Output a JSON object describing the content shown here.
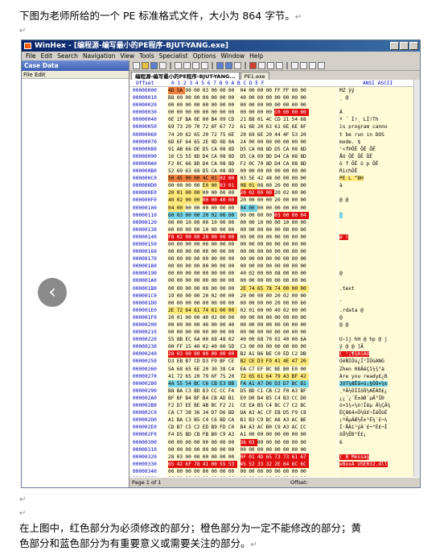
{
  "doc": {
    "intro": "下图为老师所给的一个 PE 标准格式文件，大小为 864 字节。",
    "para_mark": "↵",
    "explain_line1": "在上图中，红色部分为必须修改的部分；橙色部分为一定不能修改的部分；黄",
    "explain_line2": "色部分和蓝色部分为有重要意义或需要关注的部分。"
  },
  "window": {
    "title": "WinHex - [编程源-编写最小的PE程序-BJUT-YANG.exe]",
    "menu": [
      "File",
      "Edit",
      "Search",
      "Navigation",
      "View",
      "Tools",
      "Specialist",
      "Options",
      "Window",
      "Help"
    ],
    "left_header": "Case Data",
    "left_sub": "File  Edit",
    "tabs": [
      "编程源-编写最小的PE程序-BJUT-YANG...",
      "PE1.exe"
    ],
    "nav_arrow": "‹"
  },
  "hex": {
    "header_offset": "Offset",
    "header_cols": "0  1  2  3  4  5  6  7   8  9  A  B  C  D  E  F",
    "header_ascii": "ANSI ASCII",
    "rows": [
      {
        "off": "00000000",
        "b": "4D 5A 90 00 03 00 00 00 04 00 00 00 FF FF 00 00",
        "a": "MZ          ÿÿ"
      },
      {
        "off": "00000010",
        "b": "B8 00 00 00 00 00 00 00 40 00 00 00 00 00 00 00",
        "a": "¸       @"
      },
      {
        "off": "00000020",
        "b": "00 00 00 00 00 00 00 00 00 00 00 00 00 00 00 00",
        "a": ""
      },
      {
        "off": "00000030",
        "b": "00 00 00 00 00 00 00 00 00 00 00 00 C0 00 00 00",
        "a": "            À"
      },
      {
        "off": "00000040",
        "b": "0E 1F BA 0E 00 B4 09 CD 21 B8 01 4C CD 21 54 68",
        "a": "  º  ´ Í!¸ LÍ!Th"
      },
      {
        "off": "00000050",
        "b": "69 73 20 70 72 6F 67 72 61 6D 20 63 61 6E 6E 6F",
        "a": "is program canno"
      },
      {
        "off": "00000060",
        "b": "74 20 62 65 20 72 75 6E 20 69 6E 20 44 4F 53 20",
        "a": "t be run in DOS"
      },
      {
        "off": "00000070",
        "b": "6D 6F 64 65 2E 0D 0D 0A 24 00 00 00 00 00 00 00",
        "a": "mode.   $"
      },
      {
        "off": "00000080",
        "b": "91 AB 66 DE D5 CA 08 8D D5 CA 08 8D D5 CA 08 8D",
        "a": "'«fÞÕÊ ÕÊ ÕÊ"
      },
      {
        "off": "00000090",
        "b": "16 C5 55 8D D4 CA 08 8D D5 CA 09 8D D4 CA 08 8D",
        "a": " ÅU ÔÊ ÕÊ ÔÊ"
      },
      {
        "off": "000000A0",
        "b": "F2 0C 66 8D D4 CA 08 8D F2 0C 70 8D D4 CA 08 8D",
        "a": "ò f ÔÊ ò p ÔÊ"
      },
      {
        "off": "000000B0",
        "b": "52 69 63 68 D5 CA 08 8D 00 00 00 00 00 00 00 00",
        "a": "RichÕÊ"
      },
      {
        "off": "000000C0",
        "b": "50 45 00 00 4C 01 02 00 03 5E 42 48 00 00 00 00",
        "a": "PE  L   ^BH"
      },
      {
        "off": "000000D0",
        "b": "00 00 00 00 E0 00 03 01 0B 01 08 00 20 00 00 00",
        "a": "    à"
      },
      {
        "off": "000000E0",
        "b": "20 01 00 00 00 00 00 00 20 02 00 00 20 02 00 00",
        "a": ""
      },
      {
        "off": "000000F0",
        "b": "40 02 00 00 00 00 40 00 20 00 00 00 20 00 00 00",
        "a": "@     @"
      },
      {
        "off": "00000100",
        "b": "04 00 00 00 00 00 00 00 04 00 00 00 00 00 00 00",
        "a": ""
      },
      {
        "off": "00000110",
        "b": "60 03 00 00 20 02 00 00 00 00 00 00 03 00 00 04",
        "a": "`"
      },
      {
        "off": "00000120",
        "b": "00 00 10 00 00 10 00 00 00 00 10 00 00 10 00 00",
        "a": ""
      },
      {
        "off": "00000130",
        "b": "00 00 00 00 10 00 00 00 00 00 00 00 00 00 00 00",
        "a": ""
      },
      {
        "off": "00000140",
        "b": "F8 02 00 00 28 00 00 00 00 00 00 00 00 00 00 00",
        "a": "ø   ("
      },
      {
        "off": "00000150",
        "b": "00 00 00 00 00 00 00 00 00 00 00 00 00 00 00 00",
        "a": ""
      },
      {
        "off": "00000160",
        "b": "00 00 00 00 00 00 00 00 00 00 00 00 00 00 00 00",
        "a": ""
      },
      {
        "off": "00000170",
        "b": "00 00 00 00 00 00 00 00 00 00 00 00 00 00 00 00",
        "a": ""
      },
      {
        "off": "00000180",
        "b": "00 00 00 00 00 00 00 00 00 00 00 00 00 00 00 00",
        "a": ""
      },
      {
        "off": "00000190",
        "b": "00 00 00 00 00 00 00 00 40 02 00 00 08 00 00 00",
        "a": "        @"
      },
      {
        "off": "000001A0",
        "b": "00 00 00 00 00 00 00 00 00 00 00 00 00 00 00 00",
        "a": ""
      },
      {
        "off": "000001B0",
        "b": "00 00 00 00 00 00 00 00 2E 74 65 78 74 00 00 00",
        "a": "        .text"
      },
      {
        "off": "000001C0",
        "b": "19 00 00 00 20 02 00 00 20 00 00 00 20 02 00 00",
        "a": ""
      },
      {
        "off": "000001D0",
        "b": "00 00 00 00 00 00 00 00 00 00 00 00 20 00 00 60",
        "a": "            `"
      },
      {
        "off": "000001E0",
        "b": "2E 72 64 61 74 61 00 00 02 01 00 00 40 02 00 00",
        ".a": "",
        "a": ".rdata      @"
      },
      {
        "off": "000001F0",
        "b": "20 01 00 00 40 02 00 00 00 00 00 00 00 00 00 00",
        "a": "    @"
      },
      {
        "off": "00000200",
        "b": "00 00 00 00 40 00 00 40 00 00 00 00 00 00 00 00",
        "a": "    @  @"
      },
      {
        "off": "00000210",
        "b": "00 00 00 00 00 00 00 00 00 00 00 00 00 00 00 00",
        "a": ""
      },
      {
        "off": "00000220",
        "b": "55 8B EC 6A 00 68 48 02 40 00 68 70 02 40 00 6A",
        "a": "U‹ìj hH @ hp @ j"
      },
      {
        "off": "00000230",
        "b": "00 FF 15 40 02 40 00 5D C3 00 00 00 00 00 00 00",
        "a": " ÿ @ @ ]Ã"
      },
      {
        "off": "00000240",
        "b": "28 03 00 00 00 00 00 00 B2 A1 B6 BE C0 ED C2 DB",
        "a": "(       ²¡¶¾ÀíÂÛ"
      },
      {
        "off": "00000250",
        "b": "D3 EB B7 CD D3 F9 BF CE B2 CE D3 F9 41 4E 47 20",
        "a": "ÓëÑÍÓù¿Î²ÎÓùANG"
      },
      {
        "off": "00000260",
        "b": "5A 68 65 6E 20 30 38 C4 EA C7 EF BC BE B0 E0 00",
        "a": "Zhen 08ÄêÇï¼¾°à"
      },
      {
        "off": "00000270",
        "b": "41 72 65 20 79 6F 75 20 72 65 61 64 79 A3 BF 42",
        "a": "Are you ready£¿B"
      },
      {
        "off": "00000280",
        "b": "4A 55 54 BC C6 CB E3 BB FA A1 A7 D6 D3 D7 BC B1",
        "a": "JUT¼ÆËã»ú¡§ÖÓ×¼±"
      },
      {
        "off": "00000290",
        "b": "B8 BA C3 BD D3 CC CC F4 D5 BD C1 CB C2 F0 A3 BF",
        "a": "¸ºÃ½ÓÌÌôÕ½ÁËÂð£¿"
      },
      {
        "off": "000002A0",
        "b": "BF BF B4 BF B4 CB AD B1 E0 D0 B4 B5 C4 B3 CC D0",
        "a": "¿¿´¿´Ë­±àÐ´µÄ³ÌÐ"
      },
      {
        "off": "000002B0",
        "b": "F2 D7 EE BE AB BC F2 21 CE EA B5 C4 BC C7 C2 BC",
        "a": "ò×î¾«¼ò!Îêµ Ä¼ÇÂ¼"
      },
      {
        "off": "000002C0",
        "b": "CA C7 38 36 34 D7 D6 BD DA A3 AC CF EB D5 F9 C8",
        "a": "ÊÇ864×Ö½Ú£¬ÏëÕùÈ"
      },
      {
        "off": "000002D0",
        "b": "A1 BA C3 B5 C4 C6 BD CA B1 B3 C9 BC A8 A3 AC BE",
        "a": "¡ºÃµÄÆ½Ê±³É¼¨£¬¾"
      },
      {
        "off": "000002E0",
        "b": "CD B7 C5 C2 ED B9 FD C0 B4 A3 AC B0 C9 A3 AC CC",
        "a": "Í·ÅÂí¹ýÀ´£¬°É£¬Ì"
      },
      {
        "off": "000002F0",
        "b": "F4 D5 BD CB FB B0 C9 A3 A1 00 00 00 00 00 00 00",
        "a": "ôÕ½ËÐ°É£¡"
      },
      {
        "off": "00000300",
        "b": "00 00 00 00 00 00 00 00 36 03 00 00 00 00 00 00",
        "a": "        6"
      },
      {
        "off": "00000310",
        "b": "00 00 00 00 00 00 00 00 00 00 00 00 00 00 00 00",
        "a": ""
      },
      {
        "off": "00000320",
        "b": "28 03 00 00 00 00 00 00 0F 01 4D 65 73 73 61 67",
        "a": "(       B Messag"
      },
      {
        "off": "00000330",
        "b": "65 42 6F 78 41 00 55 53 45 52 33 32 2E 64 6C 6C",
        "a": "eBoxA USER32.dll"
      },
      {
        "off": "00000340",
        "b": "00 00 00 00 00 00 00 00 00 00 00 00 00 00 00 00",
        "a": ""
      },
      {
        "off": "00000350",
        "b": "00 00 00 00 00 00 00 00 00 00 00 00 00 00 00 00",
        "a": ""
      }
    ],
    "highlight_colors": {
      "red": "#e01010",
      "orange": "#f08040",
      "yellow": "#ffe97a",
      "blue": "#79d5e8"
    }
  },
  "status": {
    "page": "Page 1 of 1",
    "offset_label": "Offset:"
  }
}
